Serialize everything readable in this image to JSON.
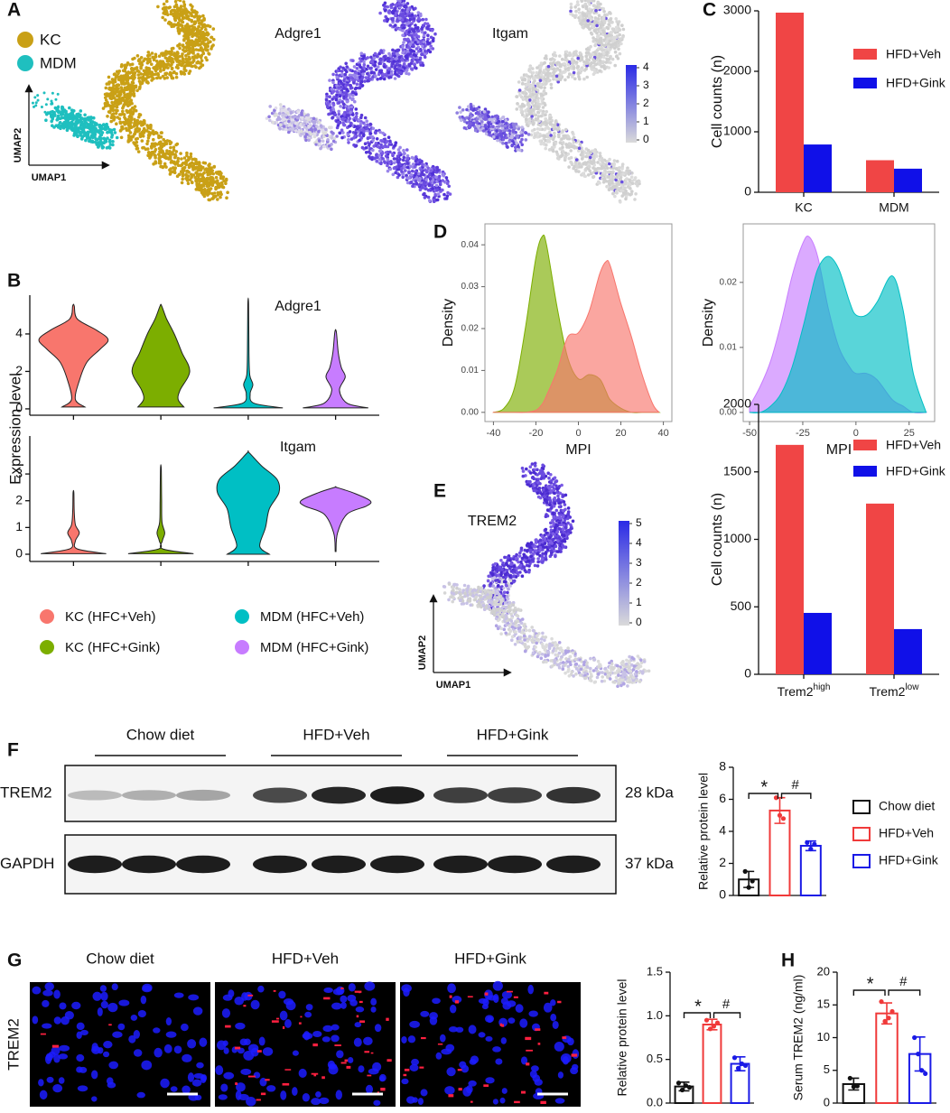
{
  "panel_labels": [
    "A",
    "B",
    "C",
    "D",
    "E",
    "F",
    "G",
    "H"
  ],
  "umap": {
    "legend": [
      {
        "name": "KC",
        "color": "#c9a016"
      },
      {
        "name": "MDM",
        "color": "#1fbfbf"
      }
    ],
    "axis_labels": [
      "UMAP2",
      "UMAP1"
    ],
    "features": [
      "Adgre1",
      "Itgam"
    ],
    "colorbar_ticks": [
      0,
      1,
      2,
      3,
      4
    ],
    "trem2": {
      "title": "TREM2",
      "colorbar_ticks": [
        0,
        1,
        2,
        3,
        4,
        5
      ]
    }
  },
  "chart_data": [
    {
      "type": "violin",
      "title": "Adgre1",
      "ylabel": "Expression level",
      "ylim": [
        -0.34,
        6.07
      ],
      "yticks": [
        0,
        2,
        4
      ],
      "legend": [
        {
          "name": "KC (HFC+Veh)",
          "color": "#f8766d"
        },
        {
          "name": "KC (HFC+Gink)",
          "color": "#7cae00"
        },
        {
          "name": "MDM (HFC+Veh)",
          "color": "#00bfc4"
        },
        {
          "name": "MDM (HFC+Gink)",
          "color": "#c77cff"
        }
      ],
      "violins": [
        {
          "color": "#f8766d",
          "y": [
            0.1,
            0.5,
            1.5,
            2.5,
            3.2,
            3.7,
            4.2,
            4.8,
            5.5
          ],
          "width": [
            0.3,
            0.05,
            0.15,
            0.35,
            0.7,
            0.9,
            0.6,
            0.1,
            0.02
          ]
        },
        {
          "color": "#7cae00",
          "y": [
            0.1,
            0.5,
            1,
            2,
            3,
            4,
            4.8,
            5.5
          ],
          "width": [
            0.6,
            0.45,
            0.5,
            0.75,
            0.55,
            0.35,
            0.15,
            0.02
          ]
        },
        {
          "color": "#00bfc4",
          "y": [
            0.05,
            0.3,
            0.8,
            1.3,
            1.8,
            3,
            5.6
          ],
          "width": [
            0.9,
            0.15,
            0.05,
            0.12,
            0.04,
            0.02,
            0.01
          ]
        },
        {
          "color": "#c77cff",
          "y": [
            0.05,
            0.3,
            1,
            1.7,
            2.2,
            3,
            4.1
          ],
          "width": [
            0.85,
            0.3,
            0.1,
            0.25,
            0.15,
            0.07,
            0.02
          ]
        }
      ]
    },
    {
      "type": "violin",
      "title": "Itgam",
      "ylim": [
        -0.27,
        4.42
      ],
      "yticks": [
        0,
        1,
        2,
        3
      ],
      "violins": [
        {
          "color": "#f8766d",
          "y": [
            0.02,
            0.2,
            0.5,
            0.8,
            1.1,
            1.6,
            2.3
          ],
          "width": [
            0.85,
            0.1,
            0.05,
            0.15,
            0.05,
            0.02,
            0.01
          ]
        },
        {
          "color": "#7cae00",
          "y": [
            0.02,
            0.2,
            0.5,
            0.8,
            1.2,
            2,
            3.2
          ],
          "width": [
            0.85,
            0.05,
            0.04,
            0.1,
            0.03,
            0.02,
            0.01
          ]
        },
        {
          "color": "#00bfc4",
          "y": [
            0,
            0.3,
            1,
            1.7,
            2.3,
            2.8,
            3.3,
            3.8
          ],
          "width": [
            0.55,
            0.3,
            0.45,
            0.55,
            0.8,
            0.75,
            0.35,
            0.02
          ]
        },
        {
          "color": "#c77cff",
          "y": [
            0.1,
            0.8,
            1.5,
            1.8,
            2,
            2.3,
            2.5
          ],
          "width": [
            0.01,
            0.05,
            0.3,
            0.8,
            0.9,
            0.45,
            0.02
          ]
        }
      ]
    },
    {
      "type": "bar",
      "ylabel": "Cell counts (n)",
      "categories": [
        "KC",
        "MDM"
      ],
      "series": [
        {
          "name": "HFD+Veh",
          "color": "#f04545",
          "values": [
            2970,
            530
          ]
        },
        {
          "name": "HFD+Gink",
          "color": "#1010e8",
          "values": [
            790,
            390
          ]
        }
      ],
      "ylim": [
        0,
        3000
      ],
      "yticks": [
        0,
        1000,
        2000,
        3000
      ],
      "legend": "upper right"
    },
    {
      "type": "density",
      "xlabel": "MPI",
      "ylabel": "Density",
      "xlim": [
        -44,
        44
      ],
      "xticks": [
        -40,
        -20,
        0,
        20,
        40
      ],
      "ylim": [
        -0.0022,
        0.045
      ],
      "yticks": [
        {
          "value": 0,
          "label": "0.00"
        },
        0.01,
        0.02,
        0.03,
        0.04
      ],
      "x": [
        -40,
        -35,
        -30,
        -25,
        -20,
        -17,
        -15,
        -10,
        -5,
        0,
        5,
        10,
        13,
        15,
        20,
        25,
        30,
        35,
        38
      ],
      "series": [
        {
          "color": "#7cae00",
          "values": [
            0,
            0.001,
            0.006,
            0.02,
            0.037,
            0.042,
            0.04,
            0.025,
            0.013,
            0.008,
            0.009,
            0.008,
            0.005,
            0.003,
            0.001,
            0,
            0,
            0,
            0
          ]
        },
        {
          "color": "#f8766d",
          "values": [
            0,
            0,
            0,
            0,
            0.0005,
            0.002,
            0.004,
            0.01,
            0.018,
            0.019,
            0.024,
            0.033,
            0.036,
            0.035,
            0.026,
            0.018,
            0.009,
            0.002,
            0
          ]
        }
      ]
    },
    {
      "type": "density",
      "xlabel": "MPI",
      "ylabel": "Density",
      "xlim": [
        -53,
        37
      ],
      "xticks": [
        -50,
        -25,
        0,
        25
      ],
      "ylim": [
        -0.0014,
        0.029
      ],
      "yticks": [
        {
          "value": 0,
          "label": "0.00"
        },
        0.01,
        0.02
      ],
      "x": [
        -50,
        -45,
        -40,
        -35,
        -30,
        -25,
        -22,
        -18,
        -13,
        -8,
        -3,
        0,
        5,
        10,
        17,
        22,
        27,
        33
      ],
      "series": [
        {
          "color": "#c77cff",
          "values": [
            0.001,
            0.004,
            0.008,
            0.014,
            0.021,
            0.026,
            0.027,
            0.024,
            0.016,
            0.01,
            0.007,
            0.006,
            0.006,
            0.005,
            0.002,
            0.001,
            0,
            0
          ]
        },
        {
          "color": "#00bfc4",
          "values": [
            0,
            0,
            0.001,
            0.003,
            0.007,
            0.013,
            0.017,
            0.022,
            0.024,
            0.022,
            0.017,
            0.015,
            0.015,
            0.017,
            0.021,
            0.016,
            0.006,
            0
          ]
        }
      ]
    },
    {
      "type": "bar",
      "ylabel": "Cell counts (n)",
      "categories": [
        [
          "Trem2",
          "high"
        ],
        [
          "Trem2",
          "low"
        ]
      ],
      "series": [
        {
          "name": "HFD+Veh",
          "color": "#f04545",
          "values": [
            1700,
            1265
          ]
        },
        {
          "name": "HFD+Gink",
          "color": "#1010e8",
          "values": [
            455,
            335
          ]
        }
      ],
      "ylim": [
        0,
        2000
      ],
      "yticks": [
        0,
        500,
        1000,
        1500,
        2000
      ],
      "legend": "upper right"
    },
    {
      "type": "bar",
      "style": "open",
      "ylabel": "Relative protein level",
      "ylim": [
        0,
        8
      ],
      "yticks": [
        0,
        2,
        4,
        6,
        8
      ],
      "legend": "right",
      "annotations": [
        "*",
        "#"
      ],
      "series": [
        {
          "name": "Chow diet",
          "color": "#111111",
          "values": [
            1.0
          ],
          "errors": [
            0.5
          ],
          "points": [
            [
              1.5,
              0.5,
              0.9
            ]
          ]
        },
        {
          "name": "HFD+Veh",
          "color": "#f03a3a",
          "values": [
            5.3
          ],
          "errors": [
            0.8
          ],
          "points": [
            [
              6.1,
              5.0,
              4.8
            ]
          ]
        },
        {
          "name": "HFD+Gink",
          "color": "#1a1ae6",
          "values": [
            3.1
          ],
          "errors": [
            0.3
          ],
          "points": [
            [
              3.3,
              2.9,
              3.2
            ]
          ]
        }
      ]
    },
    {
      "type": "bar",
      "style": "open",
      "ylabel": "Relative protein level",
      "ylim": [
        0,
        1.5
      ],
      "yticks": [
        {
          "value": 0,
          "label": "0.0"
        },
        0.5,
        {
          "value": 1,
          "label": "1.0"
        },
        1.5
      ],
      "annotations": [
        "*",
        "#"
      ],
      "series": [
        {
          "color": "#111111",
          "values": [
            0.19
          ],
          "errors": [
            0.05
          ],
          "points": [
            [
              0.23,
              0.15,
              0.2,
              0.18
            ]
          ]
        },
        {
          "color": "#f03a3a",
          "values": [
            0.9
          ],
          "errors": [
            0.06
          ],
          "points": [
            [
              0.95,
              0.85,
              0.88,
              0.92
            ]
          ]
        },
        {
          "color": "#1a1ae6",
          "values": [
            0.45
          ],
          "errors": [
            0.08
          ],
          "points": [
            [
              0.52,
              0.4,
              0.45,
              0.43
            ]
          ]
        }
      ]
    },
    {
      "type": "bar",
      "style": "open",
      "ylabel": "Serum TREM2 (ng/ml)",
      "ylim": [
        0,
        20
      ],
      "yticks": [
        0,
        5,
        10,
        15,
        20
      ],
      "annotations": [
        "*",
        "#"
      ],
      "series": [
        {
          "color": "#111111",
          "values": [
            2.9
          ],
          "errors": [
            0.9
          ],
          "points": [
            [
              3.8,
              2.5,
              2.6
            ]
          ]
        },
        {
          "color": "#f03a3a",
          "values": [
            13.7
          ],
          "errors": [
            1.6
          ],
          "points": [
            [
              15.5,
              12.5,
              13,
              14
            ]
          ]
        },
        {
          "color": "#1a1ae6",
          "values": [
            7.5
          ],
          "errors": [
            2.6
          ],
          "points": [
            [
              10,
              7.5,
              5,
              4.5
            ]
          ]
        }
      ]
    }
  ],
  "blot": {
    "groups": [
      "Chow diet",
      "HFD+Veh",
      "HFD+Gink"
    ],
    "rows": [
      {
        "label": "TREM2",
        "size": "28 kDa"
      },
      {
        "label": "GAPDH",
        "size": "37 kDa"
      }
    ]
  },
  "images": {
    "groups": [
      "Chow diet",
      "HFD+Veh",
      "HFD+Gink"
    ],
    "stain": "TREM2"
  }
}
